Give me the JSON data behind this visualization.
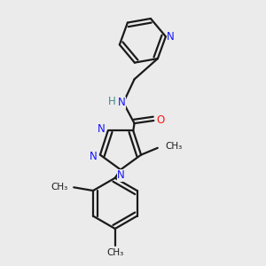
{
  "bg_color": "#ebebeb",
  "bond_color": "#1a1a1a",
  "N_color": "#1414ff",
  "O_color": "#ff1414",
  "H_color": "#4a8888",
  "bond_width": 1.6,
  "figsize": [
    3.0,
    3.0
  ],
  "dpi": 100,
  "xlim": [
    0.05,
    0.95
  ],
  "ylim": [
    0.02,
    0.98
  ]
}
